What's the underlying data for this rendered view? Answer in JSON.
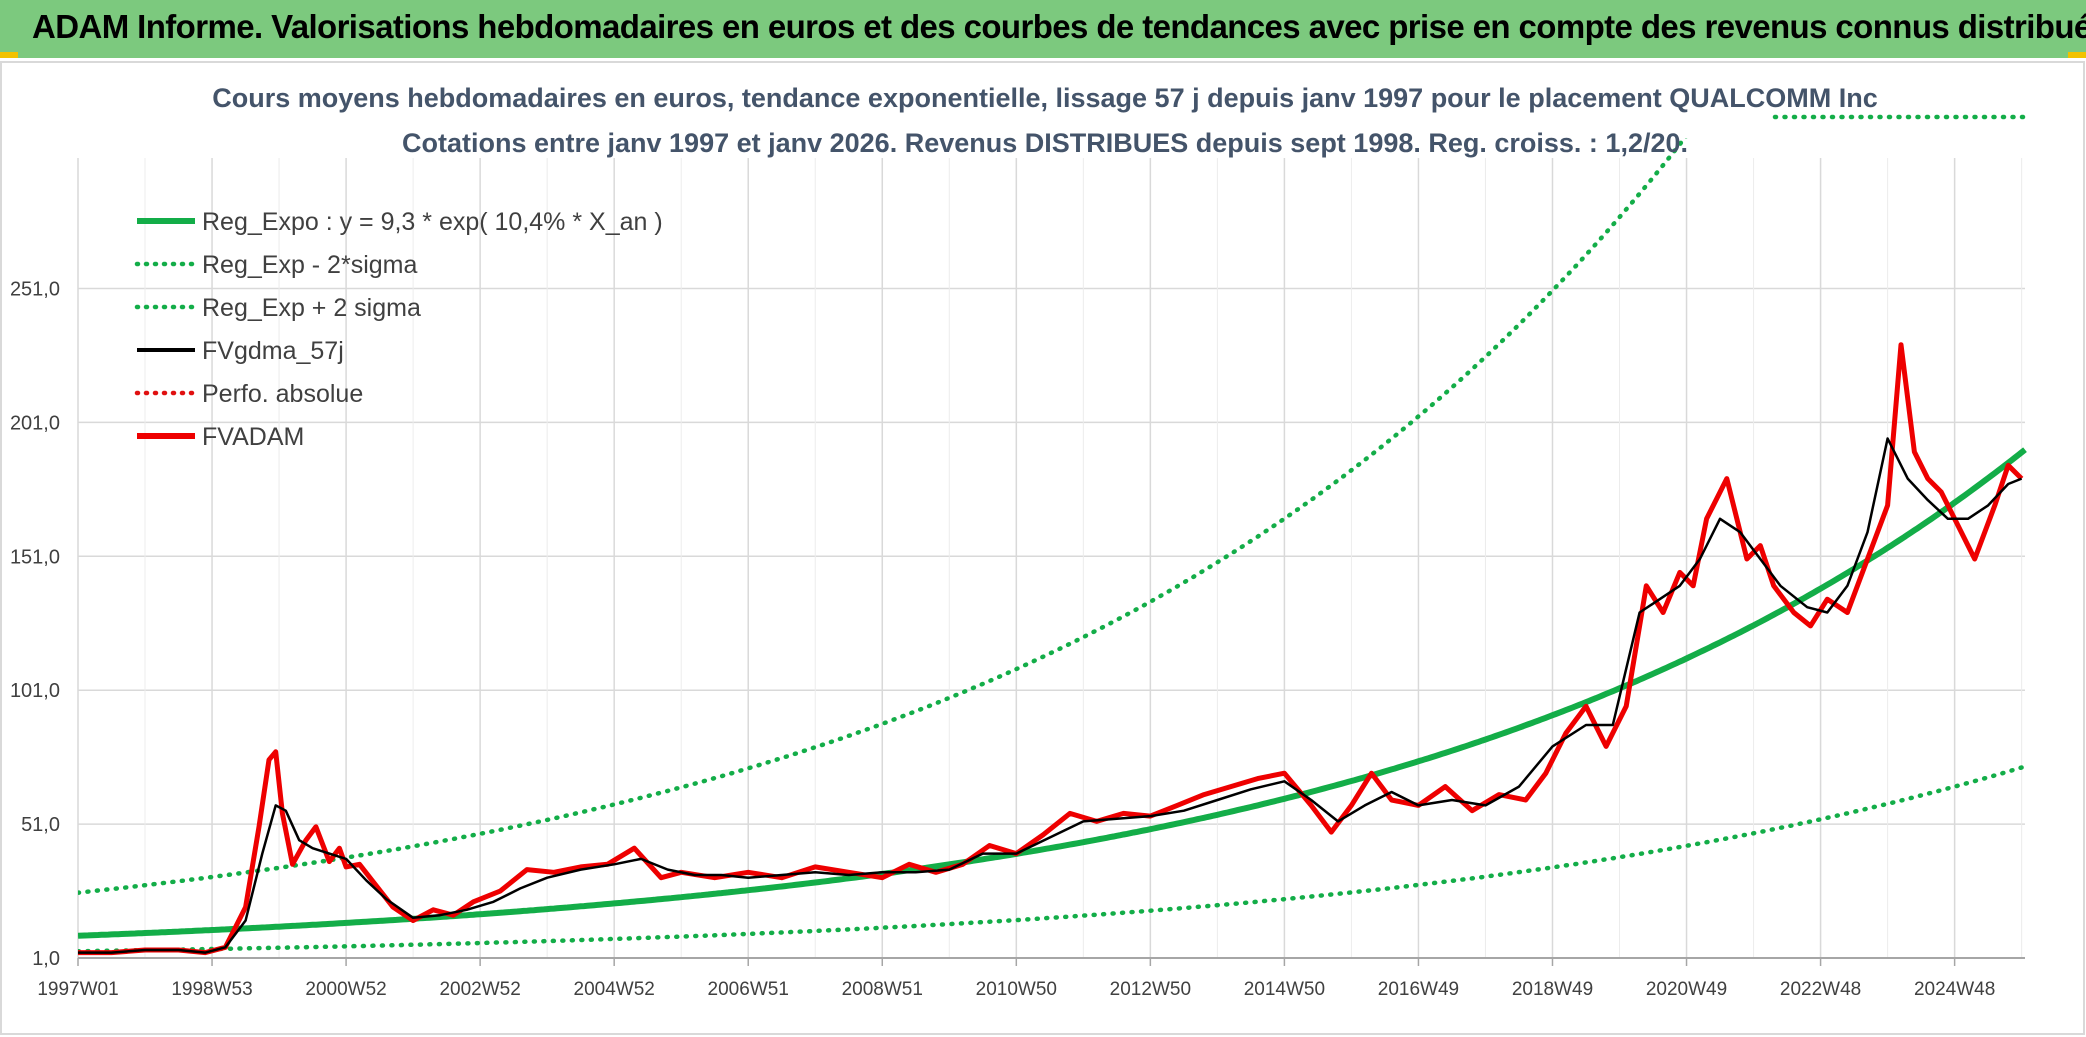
{
  "banner": {
    "title": "ADAM Informe. Valorisations hebdomadaires en euros et des courbes de tendances avec prise en compte des revenus connus distribués"
  },
  "chart_data": {
    "type": "line",
    "title": "Cours moyens hebdomadaires en euros, tendance exponentielle, lissage 57 j depuis janv 1997 pour le placement QUALCOMM Inc",
    "subtitle": "Cotations entre janv 1997 et janv 2026. Revenus DISTRIBUES depuis sept 1998. Reg. croiss. : 1,2/20.",
    "xlabel": "",
    "ylabel": "",
    "ylim": [
      1,
      296
    ],
    "x_range": [
      1997.0,
      2026.05
    ],
    "y_ticks": [
      "1,0",
      "51,0",
      "101,0",
      "151,0",
      "201,0",
      "251,0"
    ],
    "y_tick_values": [
      1,
      51,
      101,
      151,
      201,
      251
    ],
    "x_ticks": [
      "1997W01",
      "1998W53",
      "2000W52",
      "2002W52",
      "2004W52",
      "2006W51",
      "2008W51",
      "2010W50",
      "2012W50",
      "2014W50",
      "2016W49",
      "2018W49",
      "2020W49",
      "2022W48",
      "2024W48"
    ],
    "x_tick_values": [
      1997.0,
      1999.0,
      2001.0,
      2003.0,
      2005.0,
      2007.0,
      2009.0,
      2011.0,
      2013.0,
      2015.0,
      2017.0,
      2019.0,
      2021.0,
      2023.0,
      2025.0
    ],
    "grid": true,
    "legend_position": "top-left",
    "legend": [
      {
        "name": "Reg_Expo : y = 9,3 * exp( 10,4% *  X_an )",
        "color": "#13ad48",
        "style": "solid-thick"
      },
      {
        "name": "Reg_Exp - 2*sigma",
        "color": "#13ad48",
        "style": "dotted"
      },
      {
        "name": "Reg_Exp + 2 sigma",
        "color": "#13ad48",
        "style": "dotted"
      },
      {
        "name": "FVgdma_57j",
        "color": "#000000",
        "style": "solid"
      },
      {
        "name": "Perfo. absolue",
        "color": "#e01010",
        "style": "dotted"
      },
      {
        "name": "FVADAM",
        "color": "#ee0000",
        "style": "solid-thick"
      }
    ],
    "regression": {
      "a": 9.3,
      "rate": 0.104,
      "lower_factor": 0.38,
      "upper_factor": 2.73
    },
    "series": [
      {
        "name": "FVADAM",
        "x": [
          1997.0,
          1997.5,
          1998.0,
          1998.5,
          1998.9,
          1999.2,
          1999.5,
          1999.7,
          1999.85,
          1999.95,
          2000.05,
          2000.2,
          2000.4,
          2000.55,
          2000.75,
          2000.9,
          2001.0,
          2001.2,
          2001.45,
          2001.7,
          2002.0,
          2002.3,
          2002.6,
          2002.9,
          2003.3,
          2003.7,
          2004.1,
          2004.5,
          2004.9,
          2005.3,
          2005.7,
          2006.0,
          2006.5,
          2007.0,
          2007.5,
          2008.0,
          2008.5,
          2009.0,
          2009.4,
          2009.8,
          2010.2,
          2010.6,
          2011.0,
          2011.4,
          2011.8,
          2012.2,
          2012.6,
          2013.0,
          2013.4,
          2013.8,
          2014.2,
          2014.6,
          2015.0,
          2015.4,
          2015.7,
          2016.0,
          2016.3,
          2016.6,
          2017.0,
          2017.4,
          2017.8,
          2018.2,
          2018.6,
          2018.9,
          2019.2,
          2019.5,
          2019.8,
          2020.1,
          2020.4,
          2020.65,
          2020.9,
          2021.1,
          2021.3,
          2021.6,
          2021.9,
          2022.1,
          2022.3,
          2022.6,
          2022.85,
          2023.1,
          2023.4,
          2023.7,
          2024.0,
          2024.2,
          2024.4,
          2024.6,
          2024.8,
          2025.0,
          2025.3,
          2025.6,
          2025.8,
          2026.0
        ],
        "values": [
          3,
          3,
          4,
          4,
          3,
          5,
          20,
          50,
          75,
          78,
          55,
          36,
          45,
          50,
          37,
          42,
          35,
          36,
          28,
          20,
          15,
          19,
          17,
          22,
          26,
          34,
          33,
          35,
          36,
          42,
          31,
          33,
          31,
          33,
          31,
          35,
          33,
          31,
          36,
          33,
          36,
          43,
          40,
          47,
          55,
          52,
          55,
          54,
          58,
          62,
          65,
          68,
          70,
          58,
          48,
          58,
          70,
          60,
          58,
          65,
          56,
          62,
          60,
          70,
          85,
          95,
          80,
          95,
          140,
          130,
          145,
          140,
          165,
          180,
          150,
          155,
          140,
          130,
          125,
          135,
          130,
          150,
          170,
          230,
          190,
          180,
          175,
          165,
          150,
          170,
          185,
          180
        ]
      },
      {
        "name": "FVgdma_57j",
        "x": [
          1997.0,
          1997.5,
          1998.0,
          1998.5,
          1998.9,
          1999.2,
          1999.5,
          1999.75,
          1999.95,
          2000.1,
          2000.3,
          2000.5,
          2000.75,
          2001.0,
          2001.3,
          2001.6,
          2002.0,
          2002.4,
          2002.8,
          2003.2,
          2003.6,
          2004.0,
          2004.5,
          2005.0,
          2005.4,
          2005.8,
          2006.2,
          2006.6,
          2007.0,
          2007.5,
          2008.0,
          2008.5,
          2009.0,
          2009.5,
          2010.0,
          2010.5,
          2011.0,
          2011.5,
          2012.0,
          2012.5,
          2013.0,
          2013.5,
          2014.0,
          2014.5,
          2015.0,
          2015.4,
          2015.8,
          2016.2,
          2016.6,
          2017.0,
          2017.5,
          2018.0,
          2018.5,
          2019.0,
          2019.5,
          2019.9,
          2020.3,
          2020.6,
          2020.9,
          2021.2,
          2021.5,
          2021.8,
          2022.1,
          2022.4,
          2022.8,
          2023.1,
          2023.4,
          2023.7,
          2024.0,
          2024.3,
          2024.6,
          2024.9,
          2025.2,
          2025.5,
          2025.8,
          2026.0
        ],
        "values": [
          3,
          3,
          4,
          4,
          3,
          5,
          15,
          40,
          58,
          56,
          45,
          42,
          40,
          38,
          30,
          23,
          16,
          17,
          19,
          22,
          27,
          31,
          34,
          36,
          38,
          34,
          32,
          32,
          31,
          32,
          33,
          32,
          33,
          33,
          34,
          40,
          40,
          46,
          52,
          53,
          54,
          56,
          60,
          64,
          67,
          60,
          52,
          58,
          63,
          58,
          60,
          58,
          65,
          80,
          88,
          88,
          130,
          135,
          140,
          150,
          165,
          160,
          150,
          140,
          132,
          130,
          140,
          160,
          195,
          180,
          172,
          165,
          165,
          170,
          178,
          180
        ]
      }
    ]
  }
}
